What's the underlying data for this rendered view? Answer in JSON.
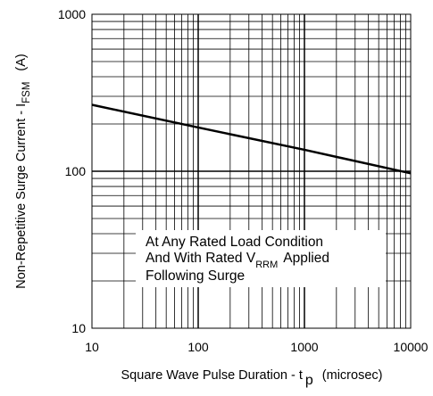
{
  "chart_data": {
    "type": "line",
    "x_scale": "log",
    "y_scale": "log",
    "xlim": [
      10,
      10000
    ],
    "ylim": [
      10,
      1000
    ],
    "x_ticks": [
      "10",
      "100",
      "1000",
      "10000"
    ],
    "y_ticks": [
      "10",
      "100",
      "1000"
    ],
    "xlabel": {
      "prefix": "Square Wave Pulse Duration - t",
      "sub": "p",
      "suffix": "(microsec)"
    },
    "ylabel": {
      "prefix": "Non-Repetitive Surge Current - I",
      "sub": "FSM",
      "suffix": "(A)"
    },
    "grid": true,
    "series": [
      {
        "x": [
          10,
          100,
          1000,
          10000
        ],
        "y": [
          265,
          190,
          137,
          97
        ]
      }
    ],
    "annotation": {
      "line1": "At Any Rated Load Condition",
      "line2_prefix": "And With Rated V",
      "line2_sub": "RRM",
      "line2_suffix": "Applied",
      "line3": "Following Surge"
    },
    "colors": {
      "line": "#000000",
      "grid": "#000000",
      "background": "#ffffff"
    }
  }
}
